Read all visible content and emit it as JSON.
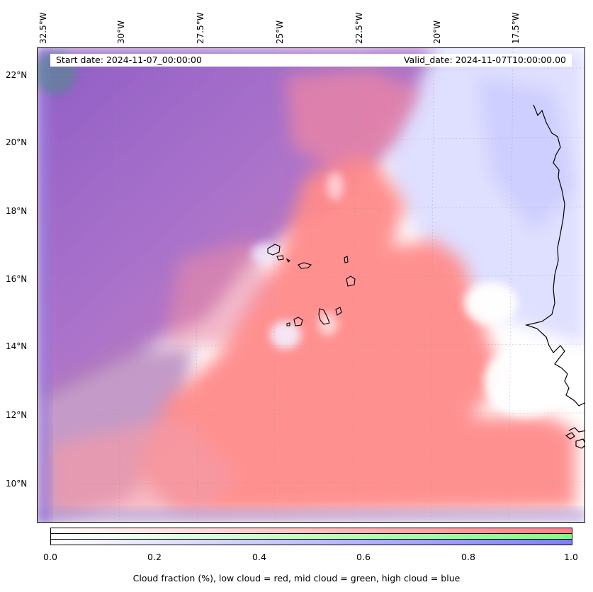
{
  "header": {
    "start_date": "Start date: 2024-11-07_00:00:00",
    "valid_date": "Valid_date: 2024-11-07T10:00:00.00"
  },
  "longitude_labels": [
    "32.5°W",
    "30°W",
    "27.5°W",
    "25°W",
    "22.5°W",
    "20°W",
    "17.5°W"
  ],
  "latitude_labels": [
    "22°N",
    "20°N",
    "18°N",
    "16°N",
    "14°N",
    "12°N",
    "10°N"
  ],
  "colors": {
    "low_cloud": "#ff7f7f",
    "mid_cloud": "#80ff80",
    "high_cloud": "#7f7fff",
    "coastline": "#000000"
  },
  "colorbar": {
    "ticks": [
      "0.0",
      "0.2",
      "0.4",
      "0.6",
      "0.8",
      "1.0"
    ],
    "caption": "Cloud fraction (%), low cloud = red, mid cloud = green, high cloud = blue"
  }
}
